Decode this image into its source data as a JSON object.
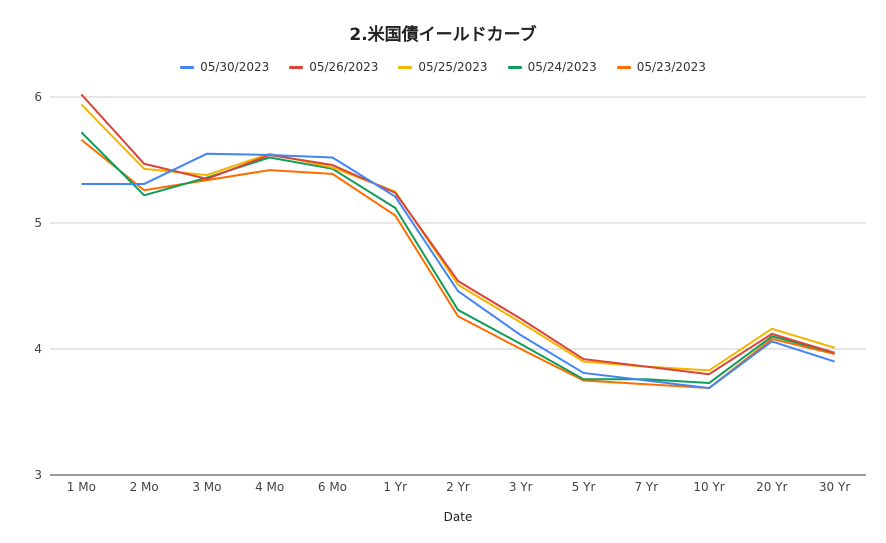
{
  "chart_data": {
    "type": "line",
    "title": "2.米国債イールドカーブ",
    "xlabel": "Date",
    "ylabel": "",
    "ylim": [
      3,
      6
    ],
    "yticks": [
      3,
      4,
      5,
      6
    ],
    "grid": true,
    "legend_position": "top",
    "categories": [
      "1 Mo",
      "2 Mo",
      "3 Mo",
      "4 Mo",
      "6 Mo",
      "1 Yr",
      "2 Yr",
      "3 Yr",
      "5 Yr",
      "7 Yr",
      "10 Yr",
      "20 Yr",
      "30 Yr"
    ],
    "series": [
      {
        "name": "05/30/2023",
        "color": "#4285f4",
        "values": [
          5.31,
          5.31,
          5.55,
          5.54,
          5.52,
          5.21,
          4.46,
          4.11,
          3.81,
          3.75,
          3.69,
          4.06,
          3.9
        ]
      },
      {
        "name": "05/26/2023",
        "color": "#db4437",
        "values": [
          6.02,
          5.47,
          5.35,
          5.54,
          5.46,
          5.24,
          4.54,
          4.24,
          3.92,
          3.86,
          3.8,
          4.12,
          3.97
        ]
      },
      {
        "name": "05/25/2023",
        "color": "#f4b400",
        "values": [
          5.94,
          5.43,
          5.38,
          5.55,
          5.44,
          5.25,
          4.51,
          4.21,
          3.9,
          3.86,
          3.83,
          4.16,
          4.01
        ]
      },
      {
        "name": "05/24/2023",
        "color": "#0f9d58",
        "values": [
          5.72,
          5.22,
          5.36,
          5.52,
          5.43,
          5.12,
          4.31,
          4.04,
          3.76,
          3.76,
          3.73,
          4.1,
          3.97
        ]
      },
      {
        "name": "05/23/2023",
        "color": "#ff6d01",
        "values": [
          5.66,
          5.26,
          5.34,
          5.42,
          5.39,
          5.06,
          4.26,
          4.0,
          3.75,
          3.72,
          3.69,
          4.08,
          3.96
        ]
      }
    ]
  }
}
